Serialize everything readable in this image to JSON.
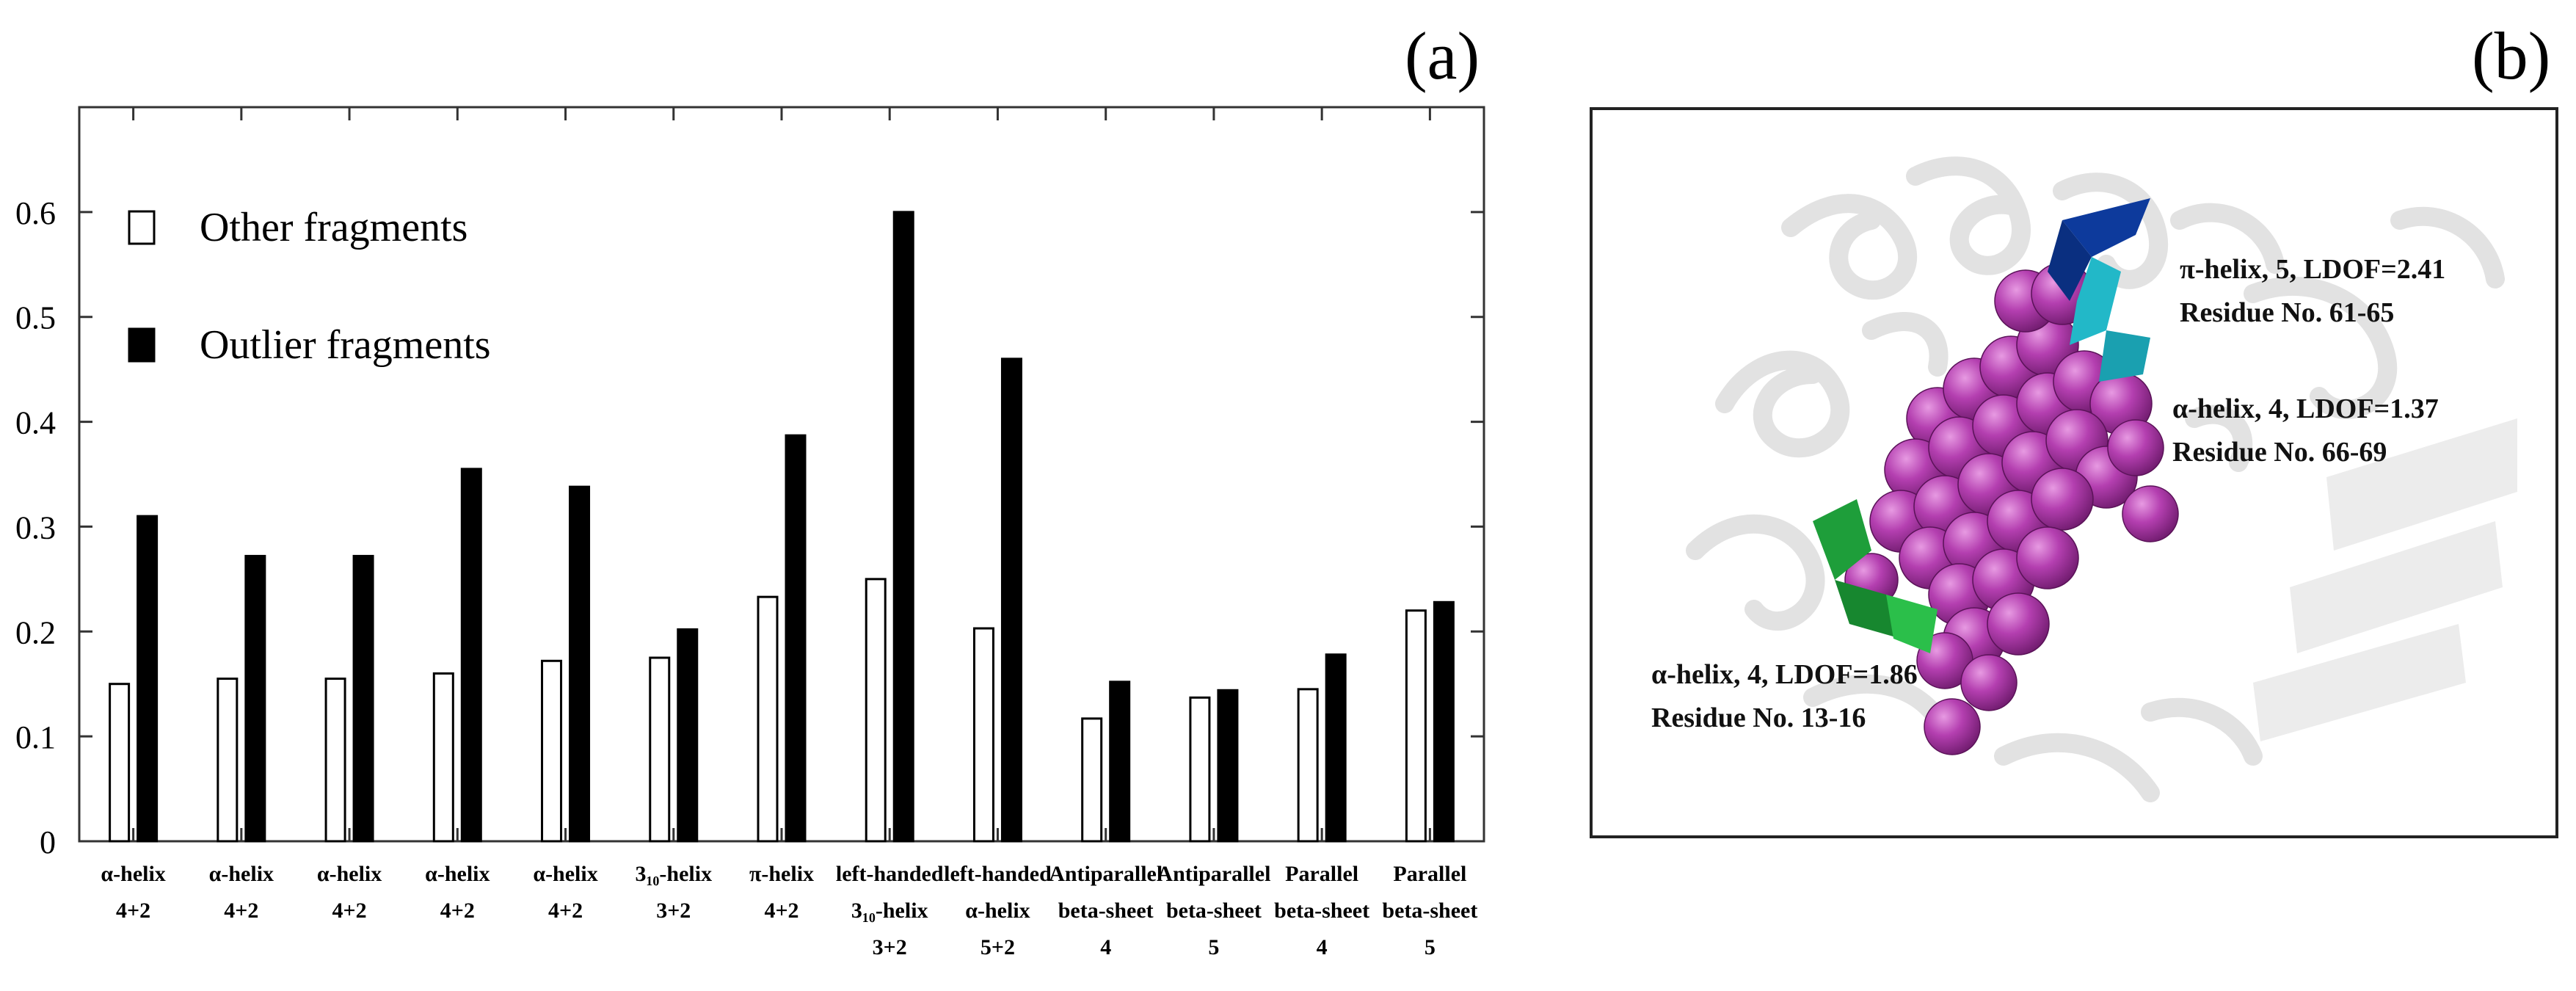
{
  "panel_a_label": "(a)",
  "panel_b_label": "(b)",
  "chart_data": {
    "type": "bar",
    "title": "",
    "xlabel": "",
    "ylabel": "",
    "ylim": [
      0,
      0.7
    ],
    "y_ticks": [
      0,
      0.1,
      0.2,
      0.3,
      0.4,
      0.5,
      0.6
    ],
    "y_tick_labels": [
      "0",
      "0.1",
      "0.2",
      "0.3",
      "0.4",
      "0.5",
      "0.6"
    ],
    "grid": false,
    "legend_position": "top-left",
    "categories": [
      [
        "α-helix",
        "4+2"
      ],
      [
        "α-helix",
        "4+2"
      ],
      [
        "α-helix",
        "4+2"
      ],
      [
        "α-helix",
        "4+2"
      ],
      [
        "α-helix",
        "4+2"
      ],
      [
        "3₁₀-helix",
        "3+2"
      ],
      [
        "π-helix",
        "4+2"
      ],
      [
        "left-handed",
        "3₁₀-helix",
        "3+2"
      ],
      [
        "left-handed",
        "α-helix",
        "5+2"
      ],
      [
        "Antiparallel",
        "beta-sheet",
        "4"
      ],
      [
        "Antiparallel",
        "beta-sheet",
        "5"
      ],
      [
        "Parallel",
        "beta-sheet",
        "4"
      ],
      [
        "Parallel",
        "beta-sheet",
        "5"
      ]
    ],
    "series": [
      {
        "name": "Other fragments",
        "fill": "#ffffff",
        "values": [
          0.15,
          0.155,
          0.155,
          0.16,
          0.172,
          0.175,
          0.233,
          0.25,
          0.203,
          0.117,
          0.137,
          0.145,
          0.22
        ]
      },
      {
        "name": "Outlier fragments",
        "fill": "#000000",
        "values": [
          0.31,
          0.272,
          0.272,
          0.355,
          0.338,
          0.202,
          0.387,
          0.6,
          0.46,
          0.152,
          0.144,
          0.178,
          0.228
        ]
      }
    ]
  },
  "panel_b": {
    "annotations": {
      "pi_helix": {
        "line1": "π-helix, 5, LDOF=2.41",
        "line2": "Residue No. 61-65"
      },
      "alpha_helix_66": {
        "line1": "α-helix, 4, LDOF=1.37",
        "line2": "Residue No. 66-69"
      },
      "alpha_helix_13": {
        "line1": "α-helix, 4, LDOF=1.86",
        "line2": "Residue No. 13-16"
      }
    },
    "colors": {
      "spheres": "#b43fb0",
      "pi_helix": "#0d3a9c",
      "alpha_helix_66": "#22b8c8",
      "alpha_helix_13": "#1e9e3a",
      "background_ribbon": "#e4e4e4"
    }
  }
}
